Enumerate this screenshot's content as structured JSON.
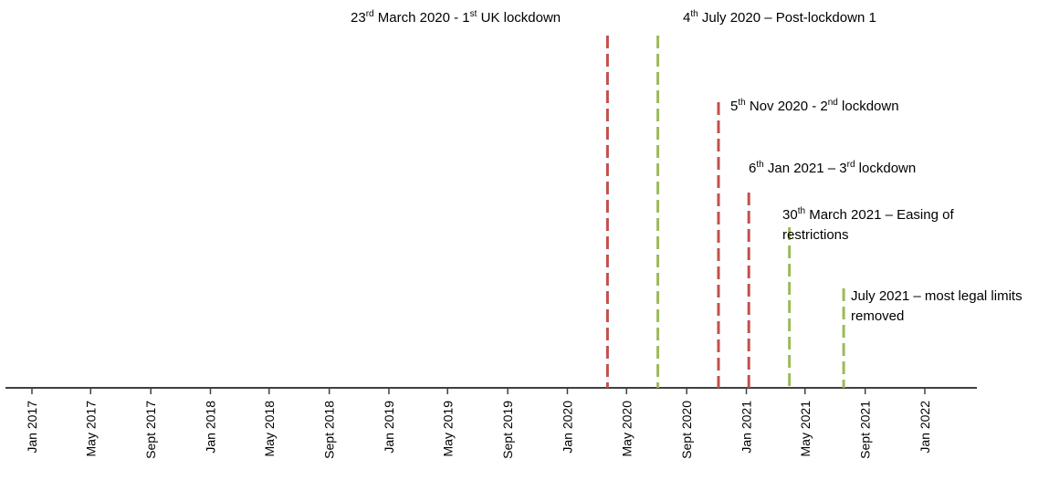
{
  "chart_data": {
    "type": "timeline",
    "ticks": [
      {
        "date": "2017-01-01",
        "label": "Jan 2017"
      },
      {
        "date": "2017-05-01",
        "label": "May 2017"
      },
      {
        "date": "2017-09-01",
        "label": "Sept 2017"
      },
      {
        "date": "2018-01-01",
        "label": "Jan 2018"
      },
      {
        "date": "2018-05-01",
        "label": "May 2018"
      },
      {
        "date": "2018-09-01",
        "label": "Sept 2018"
      },
      {
        "date": "2019-01-01",
        "label": "Jan 2019"
      },
      {
        "date": "2019-05-01",
        "label": "May 2019"
      },
      {
        "date": "2019-09-01",
        "label": "Sept 2019"
      },
      {
        "date": "2020-01-01",
        "label": "Jan 2020"
      },
      {
        "date": "2020-05-01",
        "label": "May 2020"
      },
      {
        "date": "2020-09-01",
        "label": "Sept 2020"
      },
      {
        "date": "2021-01-01",
        "label": "Jan 2021"
      },
      {
        "date": "2021-05-01",
        "label": "May 2021"
      },
      {
        "date": "2021-09-01",
        "label": "Sept 2021"
      },
      {
        "date": "2022-01-01",
        "label": "Jan 2022"
      }
    ],
    "events": [
      {
        "date": "2020-03-23",
        "color": "#c0504d",
        "label_lines": [
          [
            {
              "t": "23"
            },
            {
              "t": "rd",
              "sup": true
            },
            {
              "t": " March 2020 - 1"
            },
            {
              "t": "st",
              "sup": true
            },
            {
              "t": " UK lockdown"
            }
          ]
        ]
      },
      {
        "date": "2020-07-04",
        "color": "#9bbb59",
        "label_lines": [
          [
            {
              "t": "4"
            },
            {
              "t": "th",
              "sup": true
            },
            {
              "t": " July 2020 – Post-lockdown 1"
            }
          ]
        ]
      },
      {
        "date": "2020-11-05",
        "color": "#c0504d",
        "label_lines": [
          [
            {
              "t": "5"
            },
            {
              "t": "th",
              "sup": true
            },
            {
              "t": " Nov 2020 - 2"
            },
            {
              "t": "nd",
              "sup": true
            },
            {
              "t": " lockdown"
            }
          ]
        ]
      },
      {
        "date": "2021-01-06",
        "color": "#c0504d",
        "label_lines": [
          [
            {
              "t": "6"
            },
            {
              "t": "th",
              "sup": true
            },
            {
              "t": " Jan 2021 – 3"
            },
            {
              "t": "rd",
              "sup": true
            },
            {
              "t": " lockdown"
            }
          ]
        ]
      },
      {
        "date": "2021-03-30",
        "color": "#9bbb59",
        "label_lines": [
          [
            {
              "t": "30"
            },
            {
              "t": "th",
              "sup": true
            },
            {
              "t": " March 2021 – Easing of"
            }
          ],
          [
            {
              "t": "restrictions"
            }
          ]
        ]
      },
      {
        "date": "2021-07-19",
        "color": "#9bbb59",
        "label_lines": [
          [
            {
              "t": "July 2021 – most legal limits"
            }
          ],
          [
            {
              "t": "removed"
            }
          ]
        ]
      }
    ],
    "axis_color": "#404040"
  }
}
